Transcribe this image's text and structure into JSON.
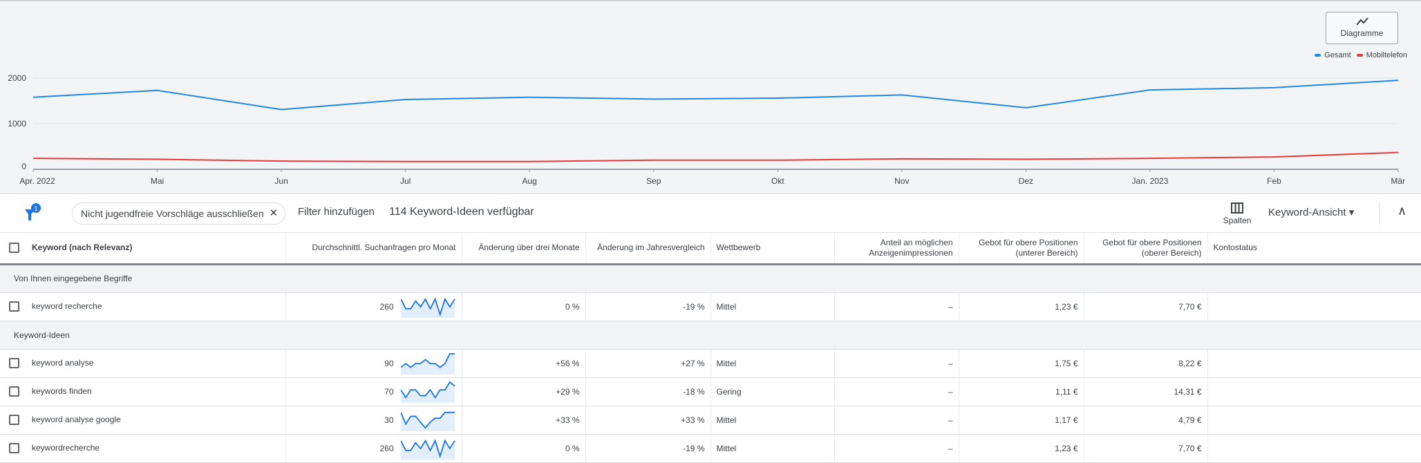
{
  "chart_data": {
    "type": "line",
    "x": [
      "Apr. 2022",
      "Mai",
      "Jun",
      "Jul",
      "Aug",
      "Sep",
      "Okt",
      "Nov",
      "Dez",
      "Jan. 2023",
      "Feb",
      "Mär"
    ],
    "series": [
      {
        "name": "Gesamt",
        "color": "#1e88e5",
        "values": [
          1580,
          1730,
          1310,
          1530,
          1580,
          1540,
          1560,
          1630,
          1350,
          1740,
          1790,
          1950
        ]
      },
      {
        "name": "Mobiltelefon",
        "color": "#e53935",
        "values": [
          240,
          220,
          180,
          170,
          170,
          200,
          200,
          230,
          220,
          240,
          270,
          370
        ]
      }
    ],
    "ylim": [
      0,
      2000
    ],
    "yticks": [
      "0",
      "1000",
      "2000"
    ],
    "grid": true,
    "legend": "top-right"
  },
  "chart_button": {
    "label": "Diagramme",
    "icon": "line-chart-icon"
  },
  "toolbar": {
    "filter_badge": "1",
    "chip_label": "Nicht jugendfreie Vorschläge ausschließen",
    "chip_close": "✕",
    "add_filter": "Filter hinzufügen",
    "count": "114 Keyword-Ideen verfügbar",
    "columns_label": "Spalten",
    "view_label": "Keyword-Ansicht",
    "view_caret": "▾",
    "collapse": "∧"
  },
  "table": {
    "headers": [
      "Keyword (nach Relevanz)",
      "Durchschnittl. Suchanfragen pro Monat",
      "Änderung über drei Monate",
      "Änderung im Jahresvergleich",
      "Wettbewerb",
      "Anteil an möglichen Anzeigenimpressionen",
      "Gebot für obere Positionen (unterer Bereich)",
      "Gebot für obere Positionen (oberer Bereich)",
      "Kontostatus"
    ],
    "group1": "Von Ihnen eingegebene Begriffe",
    "group2": "Keyword-Ideen",
    "rows": [
      {
        "keyword": "keyword recherche",
        "searches": "260",
        "trend": [
          9,
          4,
          4,
          8,
          5,
          9,
          4,
          9,
          1,
          9,
          5,
          9
        ],
        "three_month": "0 %",
        "yoy": "-19 %",
        "competition": "Mittel",
        "impr_share": "–",
        "bid_low": "1,23 €",
        "bid_high": "7,70 €",
        "status": ""
      },
      {
        "keyword": "keyword analyse",
        "searches": "90",
        "trend": [
          3,
          5,
          3,
          5,
          5,
          7,
          5,
          5,
          3,
          5,
          10,
          10
        ],
        "three_month": "+56 %",
        "yoy": "+27 %",
        "competition": "Mittel",
        "impr_share": "–",
        "bid_low": "1,75 €",
        "bid_high": "8,22 €",
        "status": ""
      },
      {
        "keyword": "keywords finden",
        "searches": "70",
        "trend": [
          6,
          2,
          6,
          6,
          3,
          3,
          6,
          2,
          6,
          6,
          10,
          8
        ],
        "three_month": "+29 %",
        "yoy": "-18 %",
        "competition": "Gering",
        "impr_share": "–",
        "bid_low": "1,11 €",
        "bid_high": "14,31 €",
        "status": ""
      },
      {
        "keyword": "keyword analyse google",
        "searches": "30",
        "trend": [
          9,
          3,
          7,
          7,
          4,
          1,
          4,
          6,
          6,
          9,
          9,
          9
        ],
        "three_month": "+33 %",
        "yoy": "+33 %",
        "competition": "Mittel",
        "impr_share": "–",
        "bid_low": "1,17 €",
        "bid_high": "4,79 €",
        "status": ""
      },
      {
        "keyword": "keywordrecherche",
        "searches": "260",
        "trend": [
          9,
          4,
          4,
          8,
          5,
          9,
          4,
          9,
          1,
          9,
          5,
          9
        ],
        "three_month": "0 %",
        "yoy": "-19 %",
        "competition": "Mittel",
        "impr_share": "–",
        "bid_low": "1,23 €",
        "bid_high": "7,70 €",
        "status": ""
      }
    ]
  }
}
